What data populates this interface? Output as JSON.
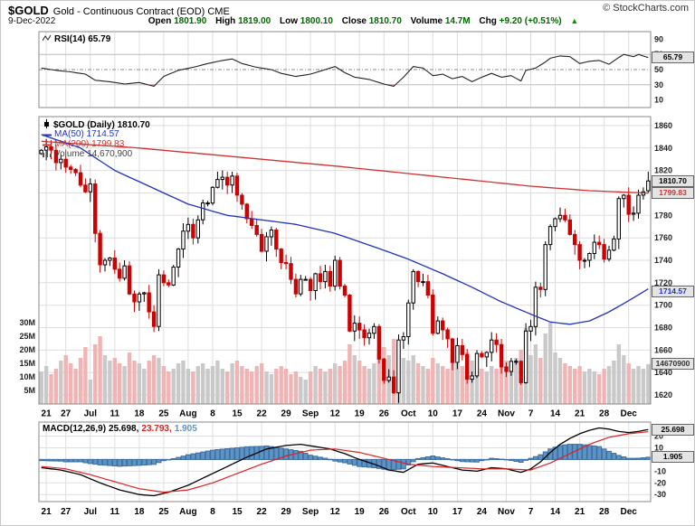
{
  "header": {
    "symbol": "$GOLD",
    "title": "Gold - Continuous Contract (EOD) CME",
    "copyright": "© StockCharts.com",
    "date": "9-Dec-2022",
    "quote": [
      {
        "label": "Open",
        "value": "1801.90"
      },
      {
        "label": "High",
        "value": "1819.00"
      },
      {
        "label": "Low",
        "value": "1800.10"
      },
      {
        "label": "Close",
        "value": "1810.70"
      },
      {
        "label": "Volume",
        "value": "14.7M"
      },
      {
        "label": "Chg",
        "value": "+9.20 (+0.51%)"
      }
    ],
    "chg_arrow": "▲"
  },
  "rsi_panel": {
    "legend": "RSI(14) 65.79",
    "current": "65.79"
  },
  "main_panel": {
    "legend_symbol": "$GOLD (Daily) 1810.70",
    "legend_ma50": "MA(50) 1714.57",
    "legend_ma200": "MA(200) 1799.83",
    "legend_volume": "Volume 14,670,900",
    "label_last": "1810.70",
    "label_ma200": "1799.83",
    "label_ma50": "1714.57",
    "label_volume": "14670900"
  },
  "macd_panel": {
    "legend_name": "MACD(12,26,9)",
    "legend_macd": "25.698,",
    "legend_signal": "23.793,",
    "legend_hist": "1.905",
    "label_macd": "25.698",
    "label_hist": "1.905"
  },
  "colors": {
    "up": "#000000",
    "down": "#cc0000",
    "ma50": "#2233bb",
    "ma200": "#cc3333",
    "rsi": "#222222",
    "macd": "#000000",
    "signal": "#dd2222",
    "hist": "#5e93c5",
    "hist_stroke": "#3c6e9f",
    "vol_up": "#c9c9c9",
    "vol_down": "#f0b4b4",
    "grid": "#dedede",
    "quote_value": "#006600",
    "arrow": "#009900"
  },
  "chart_data": {
    "x_ticks": [
      [
        "21",
        1
      ],
      [
        "27",
        5
      ],
      [
        "Jul",
        10
      ],
      [
        "11",
        15
      ],
      [
        "18",
        20
      ],
      [
        "25",
        25
      ],
      [
        "Aug",
        30
      ],
      [
        "8",
        35
      ],
      [
        "15",
        40
      ],
      [
        "22",
        45
      ],
      [
        "29",
        50
      ],
      [
        "Sep",
        55
      ],
      [
        "12",
        60
      ],
      [
        "19",
        65
      ],
      [
        "26",
        70
      ],
      [
        "Oct",
        75
      ],
      [
        "10",
        80
      ],
      [
        "17",
        85
      ],
      [
        "24",
        90
      ],
      [
        "Nov",
        95
      ],
      [
        "7",
        100
      ],
      [
        "14",
        105
      ],
      [
        "21",
        110
      ],
      [
        "28",
        115
      ],
      [
        "Dec",
        120
      ]
    ],
    "panels": {
      "rsi": {
        "type": "line",
        "ylim": [
          0,
          100
        ],
        "levels": [
          90,
          70,
          50,
          30,
          10
        ],
        "last": 65.79,
        "waypoints": [
          [
            0,
            52
          ],
          [
            3,
            49
          ],
          [
            6,
            47
          ],
          [
            9,
            44
          ],
          [
            11,
            36
          ],
          [
            14,
            34
          ],
          [
            17,
            31
          ],
          [
            20,
            33
          ],
          [
            23,
            28
          ],
          [
            25,
            41
          ],
          [
            28,
            49
          ],
          [
            31,
            53
          ],
          [
            34,
            58
          ],
          [
            37,
            62
          ],
          [
            39,
            64
          ],
          [
            41,
            58
          ],
          [
            44,
            53
          ],
          [
            47,
            50
          ],
          [
            49,
            45
          ],
          [
            52,
            41
          ],
          [
            55,
            44
          ],
          [
            58,
            50
          ],
          [
            60,
            54
          ],
          [
            62,
            46
          ],
          [
            64,
            40
          ],
          [
            67,
            37
          ],
          [
            70,
            31
          ],
          [
            72,
            28
          ],
          [
            74,
            40
          ],
          [
            76,
            54
          ],
          [
            78,
            52
          ],
          [
            80,
            42
          ],
          [
            82,
            44
          ],
          [
            84,
            38
          ],
          [
            86,
            41
          ],
          [
            88,
            34
          ],
          [
            90,
            40
          ],
          [
            92,
            45
          ],
          [
            94,
            40
          ],
          [
            96,
            42
          ],
          [
            98,
            35
          ],
          [
            99,
            49
          ],
          [
            101,
            52
          ],
          [
            103,
            60
          ],
          [
            104,
            65
          ],
          [
            106,
            68
          ],
          [
            108,
            67
          ],
          [
            110,
            58
          ],
          [
            112,
            61
          ],
          [
            114,
            62
          ],
          [
            116,
            57
          ],
          [
            118,
            66
          ],
          [
            119,
            70
          ],
          [
            121,
            67
          ],
          [
            122,
            70
          ],
          [
            124,
            65.79
          ]
        ]
      },
      "price": {
        "type": "candlestick",
        "ylim": [
          1612,
          1868
        ],
        "yticks": [
          1860,
          1840,
          1820,
          1800,
          1780,
          1760,
          1740,
          1720,
          1700,
          1680,
          1660,
          1640,
          1620
        ],
        "volume_axis": [
          "30M",
          "25M",
          "20M",
          "15M",
          "10M",
          "5M"
        ],
        "last_open": 1801.9,
        "last_high": 1819.0,
        "last_low": 1800.1,
        "last_close": 1810.7,
        "ma50_last": 1714.57,
        "ma200_last": 1799.83,
        "volume_last": 14670900,
        "close": [
          1838,
          1841,
          1838,
          1827,
          1830,
          1823,
          1821,
          1818,
          1807,
          1801,
          1808,
          1764,
          1736,
          1740,
          1742,
          1732,
          1724,
          1735,
          1710,
          1703,
          1710,
          1711,
          1694,
          1681,
          1727,
          1720,
          1718,
          1734,
          1750,
          1766,
          1772,
          1760,
          1776,
          1791,
          1791,
          1805,
          1812,
          1814,
          1807,
          1815,
          1798,
          1790,
          1777,
          1771,
          1763,
          1748,
          1761,
          1767,
          1750,
          1738,
          1737,
          1723,
          1710,
          1723,
          1723,
          1713,
          1728,
          1721,
          1730,
          1717,
          1740,
          1717,
          1709,
          1677,
          1684,
          1678,
          1671,
          1675,
          1681,
          1652,
          1633,
          1636,
          1622,
          1669,
          1672,
          1702,
          1730,
          1721,
          1721,
          1709,
          1675,
          1686,
          1678,
          1670,
          1649,
          1664,
          1656,
          1634,
          1637,
          1657,
          1654,
          1658,
          1669,
          1665,
          1645,
          1641,
          1650,
          1650,
          1631,
          1677,
          1681,
          1716,
          1714,
          1754,
          1770,
          1777,
          1780,
          1776,
          1763,
          1754,
          1740,
          1740,
          1746,
          1756,
          1754,
          1741,
          1749,
          1759,
          1795,
          1798,
          1781,
          1782,
          1798,
          1801,
          1810.7
        ],
        "volume_m": [
          12,
          14,
          11,
          13,
          16,
          18,
          15,
          13,
          17,
          21,
          9,
          22,
          25,
          18,
          16,
          17,
          15,
          14,
          19,
          16,
          15,
          13,
          16,
          18,
          17,
          14,
          12,
          13,
          15,
          16,
          13,
          12,
          14,
          15,
          13,
          14,
          16,
          13,
          12,
          15,
          16,
          14,
          13,
          12,
          14,
          15,
          12,
          11,
          13,
          14,
          13,
          11,
          12,
          10,
          9,
          12,
          14,
          13,
          12,
          13,
          15,
          14,
          16,
          22,
          18,
          16,
          14,
          13,
          15,
          19,
          21,
          18,
          24,
          20,
          17,
          16,
          18,
          15,
          14,
          13,
          17,
          15,
          14,
          13,
          18,
          15,
          14,
          19,
          16,
          14,
          13,
          12,
          14,
          13,
          15,
          16,
          15,
          17,
          20,
          28,
          18,
          22,
          17,
          26,
          30,
          19,
          17,
          15,
          14,
          13,
          14,
          12,
          13,
          12,
          11,
          13,
          14,
          16,
          22,
          18,
          15,
          13,
          14,
          13,
          14.7
        ],
        "ma50_waypoints": [
          [
            0,
            1852
          ],
          [
            8,
            1840
          ],
          [
            15,
            1820
          ],
          [
            22,
            1806
          ],
          [
            30,
            1790
          ],
          [
            38,
            1780
          ],
          [
            45,
            1776
          ],
          [
            52,
            1772
          ],
          [
            60,
            1764
          ],
          [
            68,
            1752
          ],
          [
            75,
            1741
          ],
          [
            82,
            1728
          ],
          [
            88,
            1716
          ],
          [
            94,
            1703
          ],
          [
            100,
            1692
          ],
          [
            104,
            1685
          ],
          [
            108,
            1683
          ],
          [
            112,
            1686
          ],
          [
            116,
            1694
          ],
          [
            120,
            1704
          ],
          [
            124,
            1714.57
          ]
        ],
        "ma200_waypoints": [
          [
            0,
            1846
          ],
          [
            20,
            1840
          ],
          [
            40,
            1832
          ],
          [
            60,
            1824
          ],
          [
            80,
            1815
          ],
          [
            100,
            1806
          ],
          [
            112,
            1802
          ],
          [
            124,
            1799.83
          ]
        ]
      },
      "macd": {
        "type": "bar+line",
        "ylim": [
          -36,
          32
        ],
        "yticks": [
          20,
          10,
          0,
          -10,
          -20,
          -30
        ],
        "macd_last": 25.698,
        "signal_last": 23.793,
        "hist_last": 1.905,
        "macd_waypoints": [
          [
            0,
            -7
          ],
          [
            4,
            -9
          ],
          [
            8,
            -13
          ],
          [
            12,
            -20
          ],
          [
            16,
            -26
          ],
          [
            20,
            -30
          ],
          [
            23,
            -31
          ],
          [
            26,
            -28
          ],
          [
            30,
            -22
          ],
          [
            34,
            -14
          ],
          [
            38,
            -6
          ],
          [
            42,
            2
          ],
          [
            46,
            9
          ],
          [
            50,
            12
          ],
          [
            53,
            13
          ],
          [
            56,
            11
          ],
          [
            59,
            9
          ],
          [
            62,
            5
          ],
          [
            65,
            0
          ],
          [
            68,
            -4
          ],
          [
            71,
            -9
          ],
          [
            74,
            -11
          ],
          [
            77,
            -4
          ],
          [
            80,
            -3
          ],
          [
            83,
            -6
          ],
          [
            86,
            -9
          ],
          [
            89,
            -10
          ],
          [
            92,
            -7
          ],
          [
            95,
            -8
          ],
          [
            98,
            -11
          ],
          [
            100,
            -8
          ],
          [
            102,
            -2
          ],
          [
            104,
            6
          ],
          [
            106,
            13
          ],
          [
            108,
            18
          ],
          [
            110,
            22
          ],
          [
            112,
            25
          ],
          [
            114,
            27
          ],
          [
            116,
            26
          ],
          [
            118,
            24
          ],
          [
            120,
            23
          ],
          [
            122,
            24
          ],
          [
            124,
            25.698
          ]
        ],
        "signal_waypoints": [
          [
            0,
            -6
          ],
          [
            5,
            -8
          ],
          [
            10,
            -13
          ],
          [
            15,
            -19
          ],
          [
            20,
            -25
          ],
          [
            25,
            -28
          ],
          [
            30,
            -26
          ],
          [
            35,
            -20
          ],
          [
            40,
            -12
          ],
          [
            45,
            -4
          ],
          [
            50,
            3
          ],
          [
            55,
            8
          ],
          [
            60,
            9
          ],
          [
            65,
            6
          ],
          [
            70,
            1
          ],
          [
            75,
            -4
          ],
          [
            80,
            -6
          ],
          [
            85,
            -7
          ],
          [
            90,
            -8
          ],
          [
            95,
            -8
          ],
          [
            100,
            -9
          ],
          [
            104,
            -3
          ],
          [
            108,
            5
          ],
          [
            112,
            13
          ],
          [
            116,
            19
          ],
          [
            120,
            22
          ],
          [
            124,
            23.793
          ]
        ]
      }
    }
  }
}
